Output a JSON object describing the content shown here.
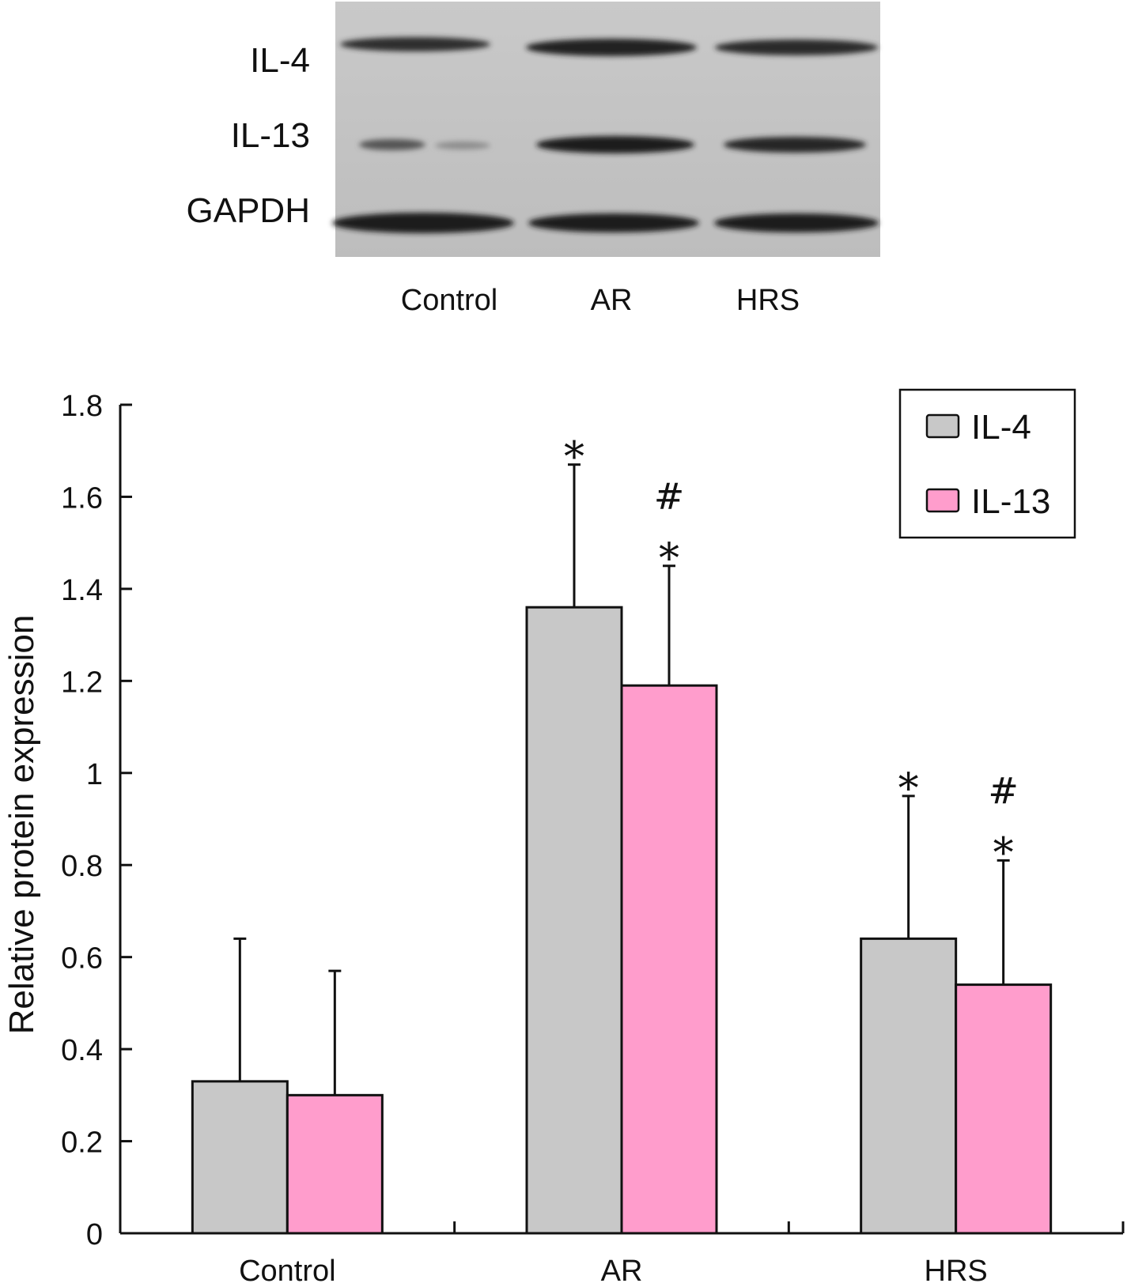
{
  "western_blot": {
    "bands": [
      "IL-4",
      "IL-13",
      "GAPDH"
    ],
    "lanes": [
      "Control",
      "AR",
      "HRS"
    ]
  },
  "chart_data": {
    "type": "bar",
    "title": "",
    "xlabel": "",
    "ylabel": "Relative protein expression",
    "categories": [
      "Control",
      "AR",
      "HRS"
    ],
    "series": [
      {
        "name": "IL-4",
        "color": "#c8c8c8",
        "values": [
          0.33,
          1.36,
          0.64
        ],
        "error": [
          0.31,
          0.31,
          0.31
        ]
      },
      {
        "name": "IL-13",
        "color": "#ff9dcc",
        "values": [
          0.3,
          1.19,
          0.54
        ],
        "error": [
          0.27,
          0.26,
          0.27
        ]
      }
    ],
    "annotations": [
      {
        "category": "AR",
        "series": "IL-4",
        "marks": [
          "*"
        ]
      },
      {
        "category": "AR",
        "series": "IL-13",
        "marks": [
          "#",
          "*"
        ]
      },
      {
        "category": "HRS",
        "series": "IL-4",
        "marks": [
          "*"
        ]
      },
      {
        "category": "HRS",
        "series": "IL-13",
        "marks": [
          "#",
          "*"
        ]
      }
    ],
    "ylim": [
      0,
      1.8
    ],
    "yticks": [
      "0",
      "0.2",
      "0.4",
      "0.6",
      "0.8",
      "1",
      "1.2",
      "1.4",
      "1.6",
      "1.8"
    ],
    "legend": "top-right",
    "grid": false
  }
}
